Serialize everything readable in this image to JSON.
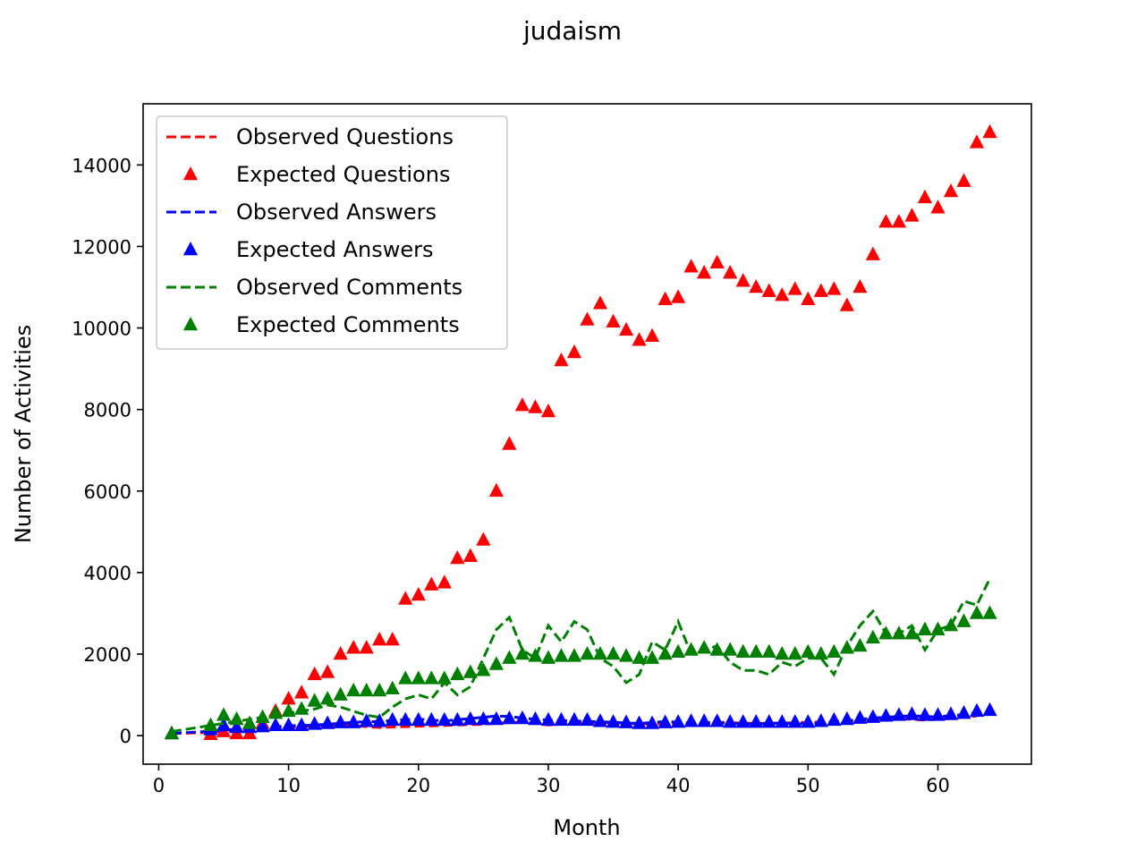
{
  "chart_data": {
    "type": "line",
    "title": "judaism",
    "xlabel": "Month",
    "ylabel": "Number of Activities",
    "xlim": [
      -1.2,
      67.2
    ],
    "ylim": [
      -700,
      15500
    ],
    "xticks": [
      0,
      10,
      20,
      30,
      40,
      50,
      60
    ],
    "yticks": [
      0,
      2000,
      4000,
      6000,
      8000,
      10000,
      12000,
      14000
    ],
    "grid": false,
    "legend_position": "upper left",
    "x": [
      1,
      2,
      3,
      4,
      5,
      6,
      7,
      8,
      9,
      10,
      11,
      12,
      13,
      14,
      15,
      16,
      17,
      18,
      19,
      20,
      21,
      22,
      23,
      24,
      25,
      26,
      27,
      28,
      29,
      30,
      31,
      32,
      33,
      34,
      35,
      36,
      37,
      38,
      39,
      40,
      41,
      42,
      43,
      44,
      45,
      46,
      47,
      48,
      49,
      50,
      51,
      52,
      53,
      54,
      55,
      56,
      57,
      58,
      59,
      60,
      61,
      62,
      63,
      64
    ],
    "series": [
      {
        "name": "Observed Questions",
        "style": "dashed",
        "color": "#ff0000",
        "x": [
          1,
          2,
          3,
          4,
          5,
          6,
          7,
          8,
          9,
          10,
          11,
          12,
          13,
          14,
          15,
          16,
          17,
          18,
          19,
          20,
          21,
          22,
          23,
          24,
          25,
          26,
          27,
          28,
          29,
          30,
          31,
          32,
          33,
          34,
          35,
          36,
          37,
          38,
          39,
          40,
          41,
          42,
          43,
          44,
          45,
          46,
          47,
          48,
          49,
          50,
          51,
          52,
          53,
          54,
          55,
          56,
          57,
          58,
          59,
          60,
          61,
          62,
          63
        ],
        "values": [
          50,
          60,
          70,
          80,
          100,
          120,
          140,
          160,
          180,
          200,
          220,
          240,
          250,
          260,
          250,
          220,
          200,
          210,
          220,
          230,
          240,
          250,
          260,
          270,
          280,
          300,
          320,
          330,
          300,
          260,
          280,
          300,
          310,
          320,
          310,
          300,
          290,
          280,
          290,
          300,
          310,
          320,
          330,
          320,
          310,
          300,
          300,
          310,
          320,
          330,
          340,
          350,
          360,
          380,
          400,
          420,
          410,
          400,
          380,
          400,
          420,
          450,
          480
        ]
      },
      {
        "name": "Expected Questions",
        "style": "triangle",
        "color": "#ff0000",
        "values": [
          50,
          null,
          null,
          30,
          100,
          50,
          50,
          300,
          600,
          900,
          1050,
          1500,
          1550,
          2000,
          2150,
          2150,
          2350,
          2350,
          3350,
          3450,
          3700,
          3750,
          4350,
          4400,
          4800,
          6000,
          7150,
          8100,
          8050,
          7950,
          9200,
          9400,
          10200,
          10600,
          10150,
          9950,
          9700,
          9800,
          10700,
          10750,
          11500,
          11350,
          11600,
          11350,
          11150,
          11000,
          10900,
          10800,
          10950,
          10700,
          10900,
          10950,
          10550,
          11000,
          11800,
          12600,
          12600,
          12750,
          13200,
          12950,
          13350,
          13600,
          14550,
          14800
        ]
      },
      {
        "name": "Observed Answers",
        "style": "dashed",
        "color": "#0000ff",
        "values": [
          50,
          70,
          90,
          110,
          130,
          160,
          180,
          200,
          220,
          240,
          250,
          260,
          280,
          300,
          330,
          340,
          350,
          370,
          390,
          400,
          380,
          360,
          390,
          420,
          450,
          480,
          470,
          430,
          400,
          380,
          370,
          360,
          350,
          340,
          330,
          310,
          300,
          320,
          350,
          330,
          300,
          310,
          320,
          300,
          290,
          280,
          300,
          310,
          290,
          300,
          310,
          330,
          360,
          400,
          430,
          450,
          470,
          490,
          470,
          460,
          490,
          520,
          560,
          600
        ]
      },
      {
        "name": "Expected Answers",
        "style": "triangle",
        "color": "#0000ff",
        "values": [
          50,
          null,
          null,
          150,
          250,
          200,
          200,
          220,
          250,
          250,
          250,
          280,
          300,
          320,
          320,
          350,
          350,
          380,
          380,
          380,
          380,
          380,
          380,
          400,
          400,
          400,
          420,
          420,
          400,
          380,
          380,
          380,
          380,
          350,
          330,
          320,
          300,
          300,
          320,
          330,
          350,
          350,
          350,
          330,
          330,
          330,
          330,
          330,
          330,
          330,
          350,
          380,
          400,
          430,
          450,
          480,
          500,
          520,
          500,
          500,
          520,
          550,
          600,
          620
        ]
      },
      {
        "name": "Observed Comments",
        "style": "dashed",
        "color": "#008000",
        "values": [
          100,
          150,
          200,
          250,
          300,
          350,
          400,
          450,
          500,
          550,
          600,
          650,
          750,
          700,
          600,
          500,
          450,
          700,
          900,
          1000,
          900,
          1300,
          1000,
          1200,
          1900,
          2600,
          2900,
          2100,
          1900,
          2700,
          2300,
          2800,
          2600,
          1900,
          1700,
          1300,
          1500,
          2300,
          2100,
          2800,
          2000,
          2100,
          2200,
          1800,
          1600,
          1600,
          1500,
          1800,
          1700,
          1900,
          1900,
          1500,
          2200,
          2700,
          3050,
          2500,
          2500,
          2700,
          2100,
          2600,
          2700,
          3300,
          3200,
          3850
        ]
      },
      {
        "name": "Expected Comments",
        "style": "triangle",
        "color": "#008000",
        "values": [
          50,
          null,
          null,
          250,
          500,
          400,
          300,
          450,
          550,
          600,
          650,
          850,
          900,
          1000,
          1100,
          1100,
          1100,
          1150,
          1400,
          1400,
          1400,
          1400,
          1500,
          1550,
          1600,
          1750,
          1900,
          2000,
          1950,
          1900,
          1950,
          1950,
          2000,
          2000,
          2000,
          1950,
          1900,
          1900,
          2000,
          2050,
          2100,
          2150,
          2100,
          2100,
          2050,
          2050,
          2050,
          2000,
          2000,
          2050,
          2000,
          2050,
          2150,
          2200,
          2400,
          2500,
          2500,
          2500,
          2600,
          2600,
          2700,
          2800,
          3000,
          3000
        ]
      }
    ]
  }
}
